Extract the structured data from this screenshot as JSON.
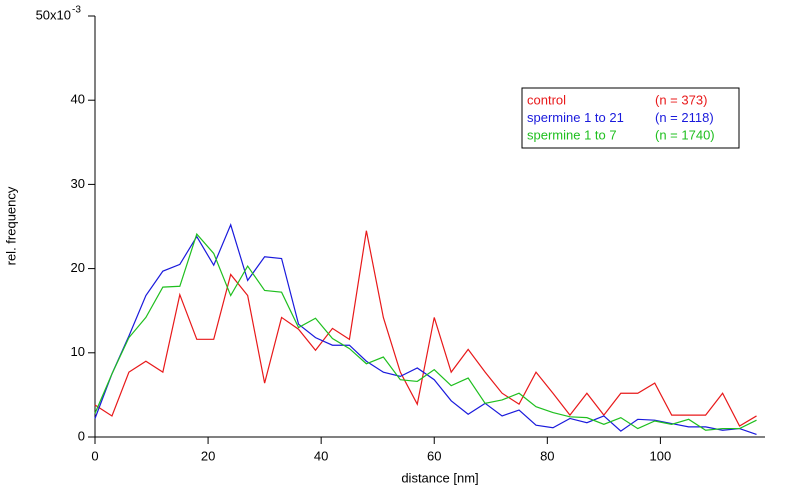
{
  "chart_data": {
    "type": "line",
    "x_label": "distance [nm]",
    "y_label": "rel. frequency",
    "xlim": [
      0,
      118.5
    ],
    "ylim": [
      0,
      50
    ],
    "xticks": [
      0,
      20,
      40,
      60,
      80,
      100
    ],
    "yticks": [
      0,
      10,
      20,
      30,
      40,
      {
        "value": 50,
        "label": "50x10"
      }
    ],
    "y_exponent": "-3",
    "x": [
      0,
      3,
      6,
      9,
      12,
      15,
      18,
      21,
      24,
      27,
      30,
      33,
      36,
      39,
      42,
      45,
      48,
      51,
      54,
      57,
      60,
      63,
      66,
      69,
      72,
      75,
      78,
      81,
      84,
      87,
      90,
      93,
      96,
      99,
      102,
      105,
      108,
      111,
      114,
      117
    ],
    "series": [
      {
        "name": "control",
        "annotation": "(n = 373)",
        "color": "#e8191a",
        "values": [
          3.8,
          2.5,
          7.7,
          9.0,
          7.7,
          16.9,
          11.6,
          11.6,
          19.3,
          16.8,
          6.4,
          14.2,
          12.8,
          10.3,
          12.9,
          11.6,
          24.5,
          14.2,
          7.7,
          3.9,
          14.2,
          7.7,
          10.4,
          7.7,
          5.2,
          3.9,
          7.7,
          5.2,
          2.6,
          5.2,
          2.6,
          5.2,
          5.2,
          6.4,
          2.6,
          2.6,
          2.6,
          5.2,
          1.3,
          2.5
        ]
      },
      {
        "name": "spermine 1 to 21",
        "annotation": "(n = 2118)",
        "color": "#1a1adc",
        "values": [
          2.2,
          7.5,
          12.0,
          16.8,
          19.7,
          20.5,
          23.8,
          20.4,
          25.2,
          18.6,
          21.4,
          21.2,
          13.4,
          11.8,
          10.9,
          10.9,
          9.0,
          7.7,
          7.2,
          8.2,
          6.8,
          4.3,
          2.7,
          4.0,
          2.5,
          3.2,
          1.4,
          1.1,
          2.2,
          1.7,
          2.5,
          0.7,
          2.1,
          2.0,
          1.6,
          1.2,
          1.2,
          0.8,
          1.0,
          0.3
        ]
      },
      {
        "name": "spermine 1 to 7",
        "annotation": "(n = 1740)",
        "color": "#1fbf1f",
        "values": [
          2.8,
          7.5,
          11.8,
          14.2,
          17.8,
          17.9,
          24.1,
          21.8,
          16.8,
          20.3,
          17.4,
          17.2,
          13.0,
          14.1,
          11.7,
          10.5,
          8.7,
          9.5,
          6.8,
          6.6,
          8.0,
          6.1,
          7.0,
          4.0,
          4.4,
          5.2,
          3.6,
          2.9,
          2.4,
          2.3,
          1.5,
          2.3,
          1.0,
          1.9,
          1.5,
          2.1,
          0.8,
          1.0,
          1.0,
          2.0
        ]
      }
    ]
  }
}
